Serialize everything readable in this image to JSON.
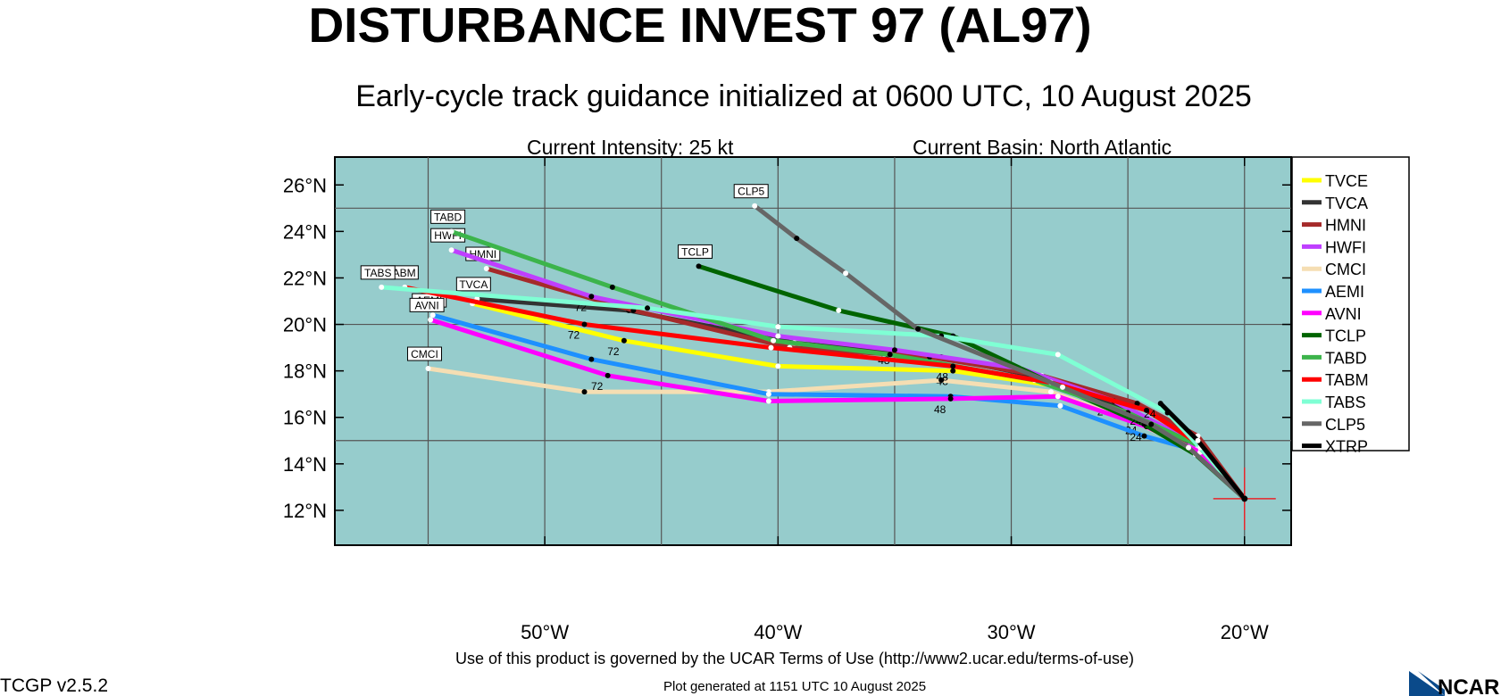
{
  "header": {
    "title": "DISTURBANCE INVEST 97 (AL97)",
    "subtitle": "Early-cycle track guidance initialized at 0600 UTC, 10 August 2025",
    "intensity": "Current Intensity: 25 kt",
    "basin": "Current Basin: North Atlantic"
  },
  "footer": {
    "terms": "Use of this product is governed by the UCAR Terms of Use (http://www2.ucar.edu/terms-of-use)",
    "version": "TCGP v2.5.2",
    "generated": "Plot generated at 1151 UTC   10 August 2025",
    "logo_text": "NCAR"
  },
  "colors": {
    "ocean": "#96cccc",
    "grid": "#555555",
    "storm_marker": "#e8242b"
  },
  "chart_data": {
    "type": "map",
    "projection": "lat-lon",
    "lon_range": [
      -59,
      -18
    ],
    "lat_range": [
      10.5,
      27.2
    ],
    "lat_ticks": [
      {
        "value": 26,
        "label": "26°N"
      },
      {
        "value": 24,
        "label": "24°N"
      },
      {
        "value": 22,
        "label": "22°N"
      },
      {
        "value": 20,
        "label": "20°N"
      },
      {
        "value": 18,
        "label": "18°N"
      },
      {
        "value": 16,
        "label": "16°N"
      },
      {
        "value": 14,
        "label": "14°N"
      },
      {
        "value": 12,
        "label": "12°N"
      }
    ],
    "lon_ticks": [
      {
        "value": -50,
        "label": "50°W"
      },
      {
        "value": -40,
        "label": "40°W"
      },
      {
        "value": -30,
        "label": "30°W"
      },
      {
        "value": -20,
        "label": "20°W"
      }
    ],
    "grid_lons": [
      -55,
      -50,
      -45,
      -40,
      -35,
      -30,
      -25,
      -20
    ],
    "grid_lats": [
      15,
      20,
      25
    ],
    "initial_position": {
      "lon": -20.0,
      "lat": 12.5
    },
    "models": [
      {
        "name": "TVCE",
        "color": "#ffff00",
        "label": "",
        "track": [
          [
            -20.0,
            12.5
          ],
          [
            -21.9,
            14.6
          ],
          [
            -24.4,
            15.9
          ],
          [
            -27.7,
            17.3
          ],
          [
            -32.5,
            18.0
          ],
          [
            -40.0,
            18.2
          ],
          [
            -46.6,
            19.3
          ],
          [
            -53.1,
            20.9
          ]
        ]
      },
      {
        "name": "TVCA",
        "color": "#333333",
        "label": "TVCA",
        "track": [
          [
            -20.0,
            12.5
          ],
          [
            -22.3,
            14.9
          ],
          [
            -24.9,
            16.3
          ],
          [
            -28.6,
            17.7
          ],
          [
            -33.0,
            18.6
          ],
          [
            -39.3,
            19.2
          ],
          [
            -46.4,
            20.6
          ],
          [
            -52.9,
            21.1
          ]
        ]
      },
      {
        "name": "HMNI",
        "color": "#a52a2a",
        "label": "HMNI",
        "track": [
          [
            -20.0,
            12.5
          ],
          [
            -22.0,
            15.2
          ],
          [
            -24.6,
            16.6
          ],
          [
            -28.7,
            17.8
          ],
          [
            -33.5,
            18.6
          ],
          [
            -39.5,
            19.0
          ],
          [
            -46.2,
            20.6
          ],
          [
            -52.5,
            22.4
          ]
        ]
      },
      {
        "name": "HWFI",
        "color": "#bf3fff",
        "label": "HWFI",
        "track": [
          [
            -20.0,
            12.5
          ],
          [
            -22.5,
            15.1
          ],
          [
            -25.6,
            16.7
          ],
          [
            -29.6,
            18.1
          ],
          [
            -35.0,
            18.9
          ],
          [
            -40.0,
            19.5
          ],
          [
            -48.0,
            21.2
          ],
          [
            -54.0,
            23.2
          ]
        ]
      },
      {
        "name": "CMCI",
        "color": "#f5deb3",
        "label": "CMCI",
        "track": [
          [
            -20.0,
            12.5
          ],
          [
            -22.1,
            14.6
          ],
          [
            -24.7,
            15.8
          ],
          [
            -28.3,
            17.1
          ],
          [
            -33.0,
            17.6
          ],
          [
            -40.4,
            17.1
          ],
          [
            -48.3,
            17.1
          ],
          [
            -55.0,
            18.1
          ]
        ]
      },
      {
        "name": "AEMI",
        "color": "#1e90ff",
        "label": "AEMI",
        "track": [
          [
            -20.0,
            12.5
          ],
          [
            -21.8,
            14.5
          ],
          [
            -24.3,
            15.2
          ],
          [
            -27.9,
            16.5
          ],
          [
            -32.6,
            16.9
          ],
          [
            -40.4,
            17.0
          ],
          [
            -48.0,
            18.5
          ],
          [
            -54.8,
            20.4
          ]
        ]
      },
      {
        "name": "AVNI",
        "color": "#ff00ff",
        "label": "AVNI",
        "track": [
          [
            -20.0,
            12.5
          ],
          [
            -21.9,
            14.5
          ],
          [
            -24.2,
            15.6
          ],
          [
            -28.0,
            16.9
          ],
          [
            -32.6,
            16.8
          ],
          [
            -40.4,
            16.7
          ],
          [
            -47.3,
            17.8
          ],
          [
            -54.9,
            20.2
          ]
        ]
      },
      {
        "name": "TCLP",
        "color": "#006400",
        "label": "TCLP",
        "track": [
          [
            -20.0,
            12.5
          ],
          [
            -22.1,
            14.4
          ],
          [
            -24.3,
            15.7
          ],
          [
            -27.7,
            17.2
          ],
          [
            -32.5,
            19.5
          ],
          [
            -37.4,
            20.6
          ],
          [
            -43.4,
            22.5
          ]
        ]
      },
      {
        "name": "TABD",
        "color": "#3cb44b",
        "label": "TABD",
        "track": [
          [
            -20.0,
            12.5
          ],
          [
            -22.0,
            14.8
          ],
          [
            -25.0,
            16.2
          ],
          [
            -29.0,
            17.6
          ],
          [
            -35.2,
            18.7
          ],
          [
            -40.2,
            19.3
          ],
          [
            -47.1,
            21.6
          ],
          [
            -54.0,
            24.0
          ]
        ]
      },
      {
        "name": "TABM",
        "color": "#ff0000",
        "label": "TABM",
        "track": [
          [
            -20.0,
            12.5
          ],
          [
            -22.0,
            14.9
          ],
          [
            -24.2,
            16.3
          ],
          [
            -28.3,
            17.5
          ],
          [
            -32.5,
            18.2
          ],
          [
            -40.3,
            19.0
          ],
          [
            -48.3,
            20.0
          ],
          [
            -56.0,
            21.6
          ]
        ]
      },
      {
        "name": "TABS",
        "color": "#7fffd4",
        "label": "TABS",
        "track": [
          [
            -20.0,
            12.5
          ],
          [
            -21.9,
            14.7
          ],
          [
            -23.3,
            16.2
          ],
          [
            -28.0,
            18.7
          ],
          [
            -33.0,
            19.5
          ],
          [
            -40.0,
            19.9
          ],
          [
            -45.6,
            20.7
          ],
          [
            -57.0,
            21.6
          ]
        ]
      },
      {
        "name": "CLP5",
        "color": "#666666",
        "label": "CLP5",
        "track": [
          [
            -20.0,
            12.5
          ],
          [
            -22.4,
            14.7
          ],
          [
            -24.0,
            15.7
          ],
          [
            -27.8,
            17.3
          ],
          [
            -34.0,
            19.8
          ],
          [
            -37.1,
            22.2
          ],
          [
            -39.2,
            23.7
          ],
          [
            -41.0,
            25.1
          ]
        ]
      },
      {
        "name": "XTRP",
        "color": "#000000",
        "label": "",
        "track": [
          [
            -20.0,
            12.5
          ],
          [
            -22.0,
            15.0
          ],
          [
            -23.6,
            16.6
          ]
        ]
      }
    ]
  }
}
